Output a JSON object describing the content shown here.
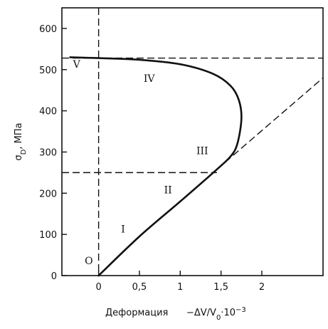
{
  "chart_data": {
    "type": "line",
    "title": "",
    "xlabel": "Деформация",
    "xlabel_formula": "−ΔV/V",
    "xlabel_formula_sub": "0",
    "xlabel_formula_tail": "·10",
    "xlabel_formula_exp": "−3",
    "ylabel": "σ",
    "ylabel_sub": "D",
    "ylabel_unit": ", МПа",
    "xlim": [
      -0.45,
      2.75
    ],
    "ylim": [
      0,
      650
    ],
    "x_ticks": [
      0,
      0.5,
      1,
      1.5,
      2
    ],
    "x_tick_labels": [
      "0",
      "0,5",
      "1",
      "1,5",
      "2"
    ],
    "y_ticks": [
      0,
      100,
      200,
      300,
      400,
      500,
      600
    ],
    "y_tick_labels": [
      "0",
      "100",
      "200",
      "300",
      "400",
      "500",
      "600"
    ],
    "grid": false,
    "series": [
      {
        "style": "solid",
        "points": [
          [
            0,
            0
          ],
          [
            0.5,
            95
          ],
          [
            1.0,
            180
          ],
          [
            1.45,
            258
          ],
          [
            1.62,
            290
          ],
          [
            1.7,
            320
          ],
          [
            1.75,
            380
          ],
          [
            1.72,
            425
          ],
          [
            1.62,
            460
          ],
          [
            1.4,
            490
          ],
          [
            1.0,
            513
          ],
          [
            0.5,
            524
          ],
          [
            0,
            528
          ],
          [
            -0.35,
            530
          ]
        ]
      },
      {
        "style": "dashed",
        "points": [
          [
            1.45,
            258
          ],
          [
            2.75,
            480
          ]
        ]
      }
    ],
    "reference_lines": [
      {
        "style": "dashed",
        "orientation": "horizontal",
        "y": 528
      },
      {
        "style": "dashed",
        "orientation": "horizontal",
        "y": 250,
        "x_to": 1.45
      },
      {
        "style": "dashed",
        "orientation": "vertical",
        "x": 0
      }
    ],
    "annotations": [
      {
        "text": "O",
        "x": -0.12,
        "y": 28
      },
      {
        "text": "I",
        "x": 0.3,
        "y": 105
      },
      {
        "text": "II",
        "x": 0.85,
        "y": 200
      },
      {
        "text": "III",
        "x": 1.27,
        "y": 295
      },
      {
        "text": "IV",
        "x": 0.62,
        "y": 470
      },
      {
        "text": "V",
        "x": -0.27,
        "y": 505
      }
    ]
  }
}
